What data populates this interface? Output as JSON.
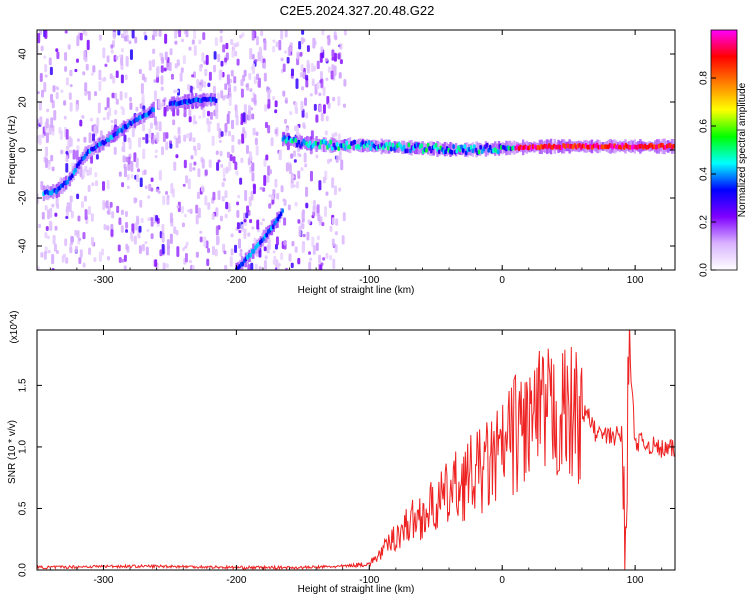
{
  "title": "C2E5.2024.327.20.48.G22",
  "chart_data": [
    {
      "type": "heatmap",
      "xlabel": "Height of straight line (km)",
      "ylabel": "Frequency (Hz)",
      "xlim": [
        -350,
        130
      ],
      "ylim": [
        -50,
        50
      ],
      "x_ticks": [
        -300,
        -200,
        -100,
        0,
        100
      ],
      "x_tick_labels": [
        "-300",
        "-200",
        "-100",
        "0",
        "100"
      ],
      "y_ticks": [
        -40,
        -20,
        0,
        20,
        40
      ],
      "y_tick_labels": [
        "-40",
        "-20",
        "0",
        "20",
        "40"
      ],
      "colorbar": {
        "label": "Normalized spectral amplitude",
        "range": [
          0.0,
          1.0
        ],
        "ticks": [
          0.0,
          0.2,
          0.4,
          0.6,
          0.8
        ],
        "tick_labels": [
          "0.0",
          "0.2",
          "0.4",
          "0.6",
          "0.8"
        ],
        "colormap": [
          "#ffffff",
          "#d9b3ff",
          "#8000ff",
          "#0000ff",
          "#00ffff",
          "#00ff00",
          "#ffff00",
          "#ff8000",
          "#ff0000",
          "#ff00ff"
        ]
      },
      "noise_region_x": [
        -350,
        -118
      ],
      "tracks": [
        {
          "x": [
            -345,
            -335,
            -325,
            -318,
            -310,
            -300,
            -290,
            -280,
            -270,
            -262
          ],
          "y": [
            -18,
            -17,
            -12,
            -5,
            0,
            3,
            7,
            11,
            14,
            17
          ],
          "amplitude": 0.4
        },
        {
          "x": [
            -250,
            -240,
            -230,
            -220,
            -215
          ],
          "y": [
            19,
            20,
            20.5,
            21,
            21
          ],
          "amplitude": 0.4
        },
        {
          "x": [
            -200,
            -190,
            -180,
            -170,
            -165
          ],
          "y": [
            -50,
            -44,
            -37,
            -30,
            -25
          ],
          "amplitude": 0.2
        },
        {
          "x": [
            -165,
            -150,
            -130,
            -110,
            -90,
            -70,
            -50,
            -30,
            -10,
            10,
            40,
            70,
            100,
            130
          ],
          "y": [
            4,
            3,
            2,
            2,
            1.5,
            1,
            0.5,
            0,
            0.5,
            1,
            1.5,
            1.5,
            1.5,
            1.5
          ],
          "amplitude": 0.9
        }
      ]
    },
    {
      "type": "line",
      "xlabel": "Height of straight line (km)",
      "ylabel": "SNR (10 * v/v)",
      "y_multiplier": "(x10^4)",
      "xlim": [
        -350,
        130
      ],
      "ylim": [
        0,
        1.95
      ],
      "x_ticks": [
        -300,
        -200,
        -100,
        0,
        100
      ],
      "x_tick_labels": [
        "-300",
        "-200",
        "-100",
        "0",
        "100"
      ],
      "y_ticks": [
        0.0,
        0.5,
        1.0,
        1.5
      ],
      "y_tick_labels": [
        "0.0",
        "0.5",
        "1.0",
        "1.5"
      ],
      "series": [
        {
          "color": "#ee2222",
          "x": [
            -350,
            -300,
            -250,
            -200,
            -150,
            -120,
            -100,
            -90,
            -80,
            -70,
            -60,
            -50,
            -40,
            -30,
            -20,
            -10,
            0,
            10,
            20,
            30,
            40,
            50,
            60,
            65,
            70,
            80,
            90,
            93,
            95,
            100,
            110,
            120,
            130
          ],
          "y": [
            0.02,
            0.03,
            0.03,
            0.02,
            0.02,
            0.03,
            0.05,
            0.15,
            0.28,
            0.38,
            0.45,
            0.52,
            0.62,
            0.72,
            0.78,
            0.85,
            0.95,
            1.12,
            1.2,
            1.24,
            1.26,
            1.26,
            1.27,
            1.25,
            1.12,
            1.08,
            1.1,
            0.1,
            1.9,
            1.05,
            1.02,
            0.98,
            0.98
          ]
        }
      ]
    }
  ]
}
